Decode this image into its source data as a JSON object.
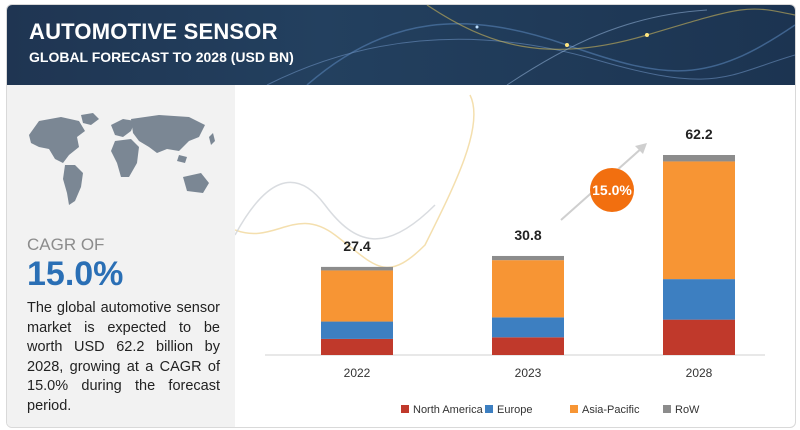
{
  "header": {
    "title": "AUTOMOTIVE SENSOR",
    "subtitle": "GLOBAL FORECAST TO 2028 (USD BN)"
  },
  "summary": {
    "cagr_label": "CAGR OF",
    "cagr_value": "15.0%",
    "description": "The global automotive sensor market is expected to be worth USD 62.2 billion by 2028, growing at a CAGR of 15.0% during the forecast period."
  },
  "colors": {
    "header_bg": "#1f3552",
    "north_america": "#c0392b",
    "europe": "#3d7fc1",
    "asia_pacific": "#f79534",
    "row": "#8c8c8c",
    "cagr_badge": "#f26f0f",
    "cagr_text": "#2a6fb5"
  },
  "chart_data": {
    "type": "bar",
    "stacked": true,
    "categories": [
      "2022",
      "2023",
      "2028"
    ],
    "totals": [
      "27.4",
      "30.8",
      "62.2"
    ],
    "series": [
      {
        "name": "North America",
        "color": "#c0392b",
        "values": [
          5.0,
          5.5,
          11.0
        ]
      },
      {
        "name": "Europe",
        "color": "#3d7fc1",
        "values": [
          5.4,
          6.2,
          12.6
        ]
      },
      {
        "name": "Asia-Pacific",
        "color": "#f79534",
        "values": [
          15.9,
          17.8,
          36.6
        ]
      },
      {
        "name": "RoW",
        "color": "#8c8c8c",
        "values": [
          1.1,
          1.3,
          2.0
        ]
      }
    ],
    "growth_badge": "15.0%",
    "legend_position": "bottom",
    "grid": false,
    "ylim": [
      0,
      62.2
    ]
  }
}
